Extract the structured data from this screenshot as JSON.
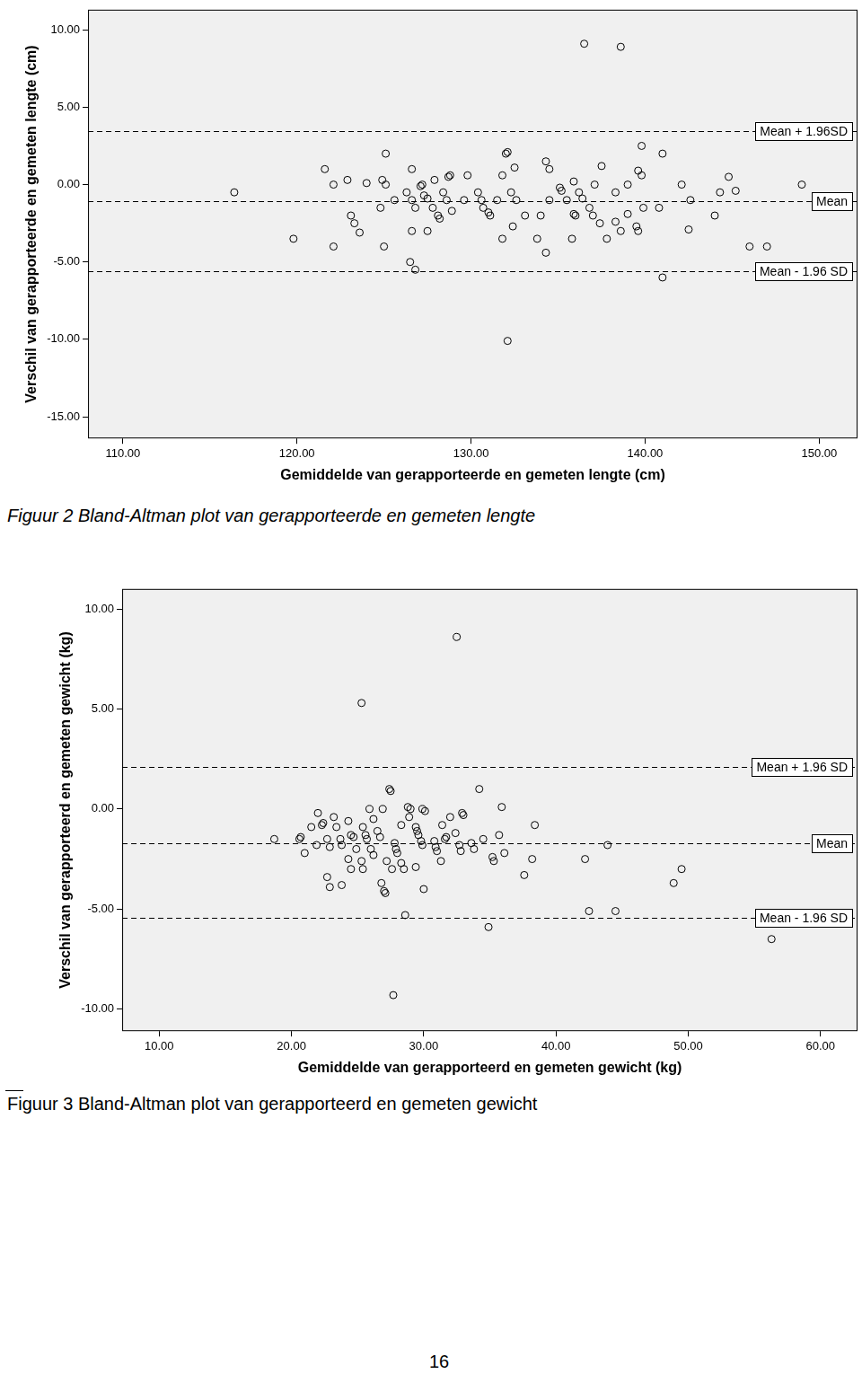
{
  "chart_data": [
    {
      "type": "scatter",
      "title": "Figuur 2 Bland-Altman plot van gerapporteerde en gemeten lengte",
      "x_label": "Gemiddelde van gerapporteerde en gemeten lengte (cm)",
      "y_label": "Verschil van gerapporteerde en gemeten lengte (cm)",
      "x": [
        116.4,
        119.8,
        121.6,
        122.1,
        122.1,
        122.9,
        123.1,
        123.3,
        123.6,
        124.0,
        124.8,
        124.9,
        125.1,
        125.1,
        125.0,
        125.6,
        126.3,
        126.6,
        126.6,
        126.6,
        126.8,
        126.5,
        126.8,
        127.1,
        127.2,
        127.3,
        127.5,
        127.5,
        127.8,
        127.9,
        128.1,
        128.2,
        128.4,
        128.6,
        128.7,
        128.8,
        128.9,
        129.6,
        129.8,
        130.4,
        130.6,
        130.7,
        131.0,
        131.1,
        131.5,
        131.8,
        131.8,
        132.0,
        132.1,
        132.1,
        132.3,
        132.4,
        132.5,
        132.6,
        133.1,
        133.8,
        134.0,
        134.3,
        134.3,
        134.5,
        134.5,
        135.1,
        135.2,
        135.5,
        135.8,
        135.9,
        135.9,
        136.0,
        136.2,
        136.4,
        136.5,
        136.8,
        137.0,
        137.1,
        137.4,
        137.5,
        137.8,
        138.3,
        138.3,
        138.6,
        138.6,
        139.0,
        139.0,
        139.5,
        139.6,
        139.6,
        139.8,
        139.8,
        139.9,
        140.8,
        141.0,
        141.0,
        142.1,
        142.5,
        142.6,
        144.0,
        144.3,
        144.8,
        145.2,
        146.0,
        147.0,
        149.0
      ],
      "y": [
        -0.5,
        -3.5,
        1.0,
        0.0,
        -4.0,
        0.3,
        -2.0,
        -2.5,
        -3.1,
        0.1,
        -1.5,
        0.3,
        0.0,
        2.0,
        -4.0,
        -1.0,
        -0.5,
        1.0,
        -1.0,
        -3.0,
        -1.5,
        -5.0,
        -5.5,
        -0.1,
        0.0,
        -0.7,
        -0.9,
        -3.0,
        -1.5,
        0.3,
        -2.0,
        -2.2,
        -0.5,
        -1.0,
        0.5,
        0.6,
        -1.7,
        -1.0,
        0.6,
        -0.5,
        -1.0,
        -1.5,
        -1.8,
        -2.0,
        -1.0,
        0.6,
        -3.5,
        2.0,
        2.1,
        -10.1,
        -0.5,
        -2.7,
        1.1,
        -1.0,
        -2.0,
        -3.5,
        -2.0,
        1.5,
        -4.4,
        -1.0,
        1.0,
        -0.2,
        -0.4,
        -1.0,
        -3.5,
        0.2,
        -1.9,
        -2.0,
        -0.5,
        -0.9,
        9.1,
        -1.5,
        -2.0,
        0.0,
        -2.5,
        1.2,
        -3.5,
        -0.5,
        -2.4,
        -3.0,
        8.9,
        0.0,
        -1.9,
        -2.7,
        -3.0,
        0.9,
        0.6,
        2.5,
        -1.5,
        -1.5,
        2.0,
        -6.0,
        0.0,
        -2.9,
        -1.0,
        -2.0,
        -0.5,
        0.5,
        -0.4,
        -4.0,
        -4.0,
        0.0
      ],
      "xlim": [
        108.0,
        152.2
      ],
      "ylim": [
        -16.4,
        11.3
      ],
      "xticks": [
        {
          "value": 110,
          "label": "110.00"
        },
        {
          "value": 120,
          "label": "120.00"
        },
        {
          "value": 130,
          "label": "130.00"
        },
        {
          "value": 140,
          "label": "140.00"
        },
        {
          "value": 150,
          "label": "150.00"
        }
      ],
      "yticks": [
        {
          "value": -15,
          "label": "-15.00"
        },
        {
          "value": -10,
          "label": "-10.00"
        },
        {
          "value": -5,
          "label": "-5.00"
        },
        {
          "value": 0,
          "label": "0.00"
        },
        {
          "value": 5,
          "label": "5.00"
        },
        {
          "value": 10,
          "label": "10.00"
        }
      ],
      "reference_lines": [
        {
          "value": 3.46,
          "label": "Mean + 1.96SD"
        },
        {
          "value": -1.07,
          "label": "Mean"
        },
        {
          "value": -5.6,
          "label": "Mean - 1.96 SD"
        }
      ],
      "line_style": "dashed",
      "marker": "circle",
      "color": "#000000",
      "grid": false
    },
    {
      "type": "scatter",
      "title": "Figuur 3 Bland-Altman plot van gerapporteerd en gemeten gewicht",
      "x_label": "Gemiddelde van gerapporteerd en gemeten gewicht (kg)",
      "y_label": "Verschil van gerapporteerd en gemeten gewicht (kg)",
      "x": [
        18.7,
        20.6,
        20.7,
        21.0,
        21.5,
        21.9,
        22.0,
        22.3,
        22.4,
        22.7,
        22.7,
        22.9,
        22.9,
        23.2,
        23.4,
        23.7,
        23.8,
        23.8,
        24.3,
        24.3,
        24.5,
        24.5,
        24.7,
        24.9,
        25.3,
        25.3,
        25.4,
        25.4,
        25.6,
        25.7,
        25.9,
        26.0,
        26.2,
        26.2,
        26.5,
        26.7,
        26.8,
        26.9,
        27.0,
        27.1,
        27.2,
        27.4,
        27.5,
        27.6,
        27.7,
        27.8,
        27.9,
        28.0,
        28.3,
        28.3,
        28.5,
        28.6,
        28.8,
        28.9,
        29.0,
        29.4,
        29.4,
        29.5,
        29.6,
        29.8,
        29.9,
        29.9,
        30.0,
        30.1,
        30.8,
        30.9,
        31.0,
        31.3,
        31.4,
        31.6,
        31.7,
        32.0,
        32.4,
        32.5,
        32.7,
        32.8,
        32.9,
        33.0,
        33.6,
        33.8,
        34.2,
        34.5,
        34.9,
        35.2,
        35.3,
        35.7,
        35.9,
        36.1,
        37.6,
        38.2,
        38.4,
        42.2,
        42.5,
        43.9,
        44.5,
        48.9,
        49.5,
        56.3
      ],
      "y": [
        -1.5,
        -1.5,
        -1.4,
        -2.2,
        -0.9,
        -1.8,
        -0.2,
        -0.8,
        -0.7,
        -3.4,
        -1.5,
        -1.9,
        -3.9,
        -0.4,
        -0.9,
        -1.5,
        -3.8,
        -1.8,
        -0.6,
        -2.5,
        -3.0,
        -1.3,
        -1.4,
        -2.0,
        5.3,
        -2.6,
        -0.9,
        -3.0,
        -1.3,
        -1.5,
        0.0,
        -2.0,
        -2.3,
        -0.5,
        -1.1,
        -1.4,
        -3.7,
        0.0,
        -4.1,
        -4.2,
        -2.6,
        1.0,
        0.9,
        -3.0,
        -9.3,
        -1.7,
        -2.0,
        -2.2,
        -0.8,
        -2.7,
        -3.0,
        -5.3,
        0.1,
        -0.4,
        0.0,
        -2.9,
        -0.9,
        -1.1,
        -1.3,
        -1.6,
        -1.8,
        0.0,
        -4.0,
        -0.1,
        -1.6,
        -1.9,
        -2.1,
        -2.6,
        -0.8,
        -1.5,
        -1.4,
        -0.4,
        -1.2,
        8.6,
        -1.8,
        -2.1,
        -0.2,
        -0.3,
        -1.7,
        -2.0,
        1.0,
        -1.5,
        -5.9,
        -2.4,
        -2.6,
        -1.3,
        0.1,
        -2.2,
        -3.3,
        -2.5,
        -0.8,
        -2.5,
        -5.1,
        -1.8,
        -5.1,
        -3.7,
        -3.0,
        -6.5
      ],
      "xlim": [
        7.2,
        62.8
      ],
      "ylim": [
        -11.1,
        11.0
      ],
      "xticks": [
        {
          "value": 10,
          "label": "10.00"
        },
        {
          "value": 20,
          "label": "20.00"
        },
        {
          "value": 30,
          "label": "30.00"
        },
        {
          "value": 40,
          "label": "40.00"
        },
        {
          "value": 50,
          "label": "50.00"
        },
        {
          "value": 60,
          "label": "60.00"
        }
      ],
      "yticks": [
        {
          "value": -10,
          "label": "-10.00"
        },
        {
          "value": -5,
          "label": "-5.00"
        },
        {
          "value": 0,
          "label": "0.00"
        },
        {
          "value": 5,
          "label": "5.00"
        },
        {
          "value": 10,
          "label": "10.00"
        }
      ],
      "reference_lines": [
        {
          "value": 2.1,
          "label": "Mean + 1.96 SD"
        },
        {
          "value": -1.7,
          "label": "Mean"
        },
        {
          "value": -5.45,
          "label": "Mean - 1.96 SD"
        }
      ],
      "line_style": "dashed",
      "marker": "circle",
      "color": "#000000",
      "grid": false
    }
  ],
  "page_number": 16
}
